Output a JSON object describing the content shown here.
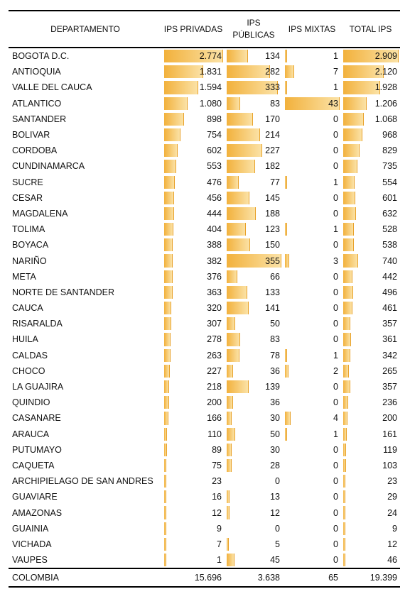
{
  "chart_data": {
    "type": "table",
    "columns": [
      "DEPARTAMENTO",
      "IPS PRIVADAS",
      "IPS PÚBLICAS",
      "IPS MIXTAS",
      "TOTAL IPS"
    ],
    "rows": [
      {
        "name": "BOGOTA D.C.",
        "privadas": "2.774",
        "publicas": "134",
        "mixtas": "1",
        "total": "2.909"
      },
      {
        "name": "ANTIOQUIA",
        "privadas": "1.831",
        "publicas": "282",
        "mixtas": "7",
        "total": "2.120"
      },
      {
        "name": "VALLE DEL CAUCA",
        "privadas": "1.594",
        "publicas": "333",
        "mixtas": "1",
        "total": "1.928"
      },
      {
        "name": "ATLANTICO",
        "privadas": "1.080",
        "publicas": "83",
        "mixtas": "43",
        "total": "1.206"
      },
      {
        "name": "SANTANDER",
        "privadas": "898",
        "publicas": "170",
        "mixtas": "0",
        "total": "1.068"
      },
      {
        "name": "BOLIVAR",
        "privadas": "754",
        "publicas": "214",
        "mixtas": "0",
        "total": "968"
      },
      {
        "name": "CORDOBA",
        "privadas": "602",
        "publicas": "227",
        "mixtas": "0",
        "total": "829"
      },
      {
        "name": "CUNDINAMARCA",
        "privadas": "553",
        "publicas": "182",
        "mixtas": "0",
        "total": "735"
      },
      {
        "name": "SUCRE",
        "privadas": "476",
        "publicas": "77",
        "mixtas": "1",
        "total": "554"
      },
      {
        "name": "CESAR",
        "privadas": "456",
        "publicas": "145",
        "mixtas": "0",
        "total": "601"
      },
      {
        "name": "MAGDALENA",
        "privadas": "444",
        "publicas": "188",
        "mixtas": "0",
        "total": "632"
      },
      {
        "name": "TOLIMA",
        "privadas": "404",
        "publicas": "123",
        "mixtas": "1",
        "total": "528"
      },
      {
        "name": "BOYACA",
        "privadas": "388",
        "publicas": "150",
        "mixtas": "0",
        "total": "538"
      },
      {
        "name": "NARIÑO",
        "privadas": "382",
        "publicas": "355",
        "mixtas": "3",
        "total": "740"
      },
      {
        "name": "META",
        "privadas": "376",
        "publicas": "66",
        "mixtas": "0",
        "total": "442"
      },
      {
        "name": "NORTE DE SANTANDER",
        "privadas": "363",
        "publicas": "133",
        "mixtas": "0",
        "total": "496"
      },
      {
        "name": "CAUCA",
        "privadas": "320",
        "publicas": "141",
        "mixtas": "0",
        "total": "461"
      },
      {
        "name": "RISARALDA",
        "privadas": "307",
        "publicas": "50",
        "mixtas": "0",
        "total": "357"
      },
      {
        "name": "HUILA",
        "privadas": "278",
        "publicas": "83",
        "mixtas": "0",
        "total": "361"
      },
      {
        "name": "CALDAS",
        "privadas": "263",
        "publicas": "78",
        "mixtas": "1",
        "total": "342"
      },
      {
        "name": "CHOCO",
        "privadas": "227",
        "publicas": "36",
        "mixtas": "2",
        "total": "265"
      },
      {
        "name": "LA GUAJIRA",
        "privadas": "218",
        "publicas": "139",
        "mixtas": "0",
        "total": "357"
      },
      {
        "name": "QUINDIO",
        "privadas": "200",
        "publicas": "36",
        "mixtas": "0",
        "total": "236"
      },
      {
        "name": "CASANARE",
        "privadas": "166",
        "publicas": "30",
        "mixtas": "4",
        "total": "200"
      },
      {
        "name": "ARAUCA",
        "privadas": "110",
        "publicas": "50",
        "mixtas": "1",
        "total": "161"
      },
      {
        "name": "PUTUMAYO",
        "privadas": "89",
        "publicas": "30",
        "mixtas": "0",
        "total": "119"
      },
      {
        "name": "CAQUETA",
        "privadas": "75",
        "publicas": "28",
        "mixtas": "0",
        "total": "103"
      },
      {
        "name": "ARCHIPIELAGO DE SAN ANDRES",
        "privadas": "23",
        "publicas": "0",
        "mixtas": "0",
        "total": "23"
      },
      {
        "name": "GUAVIARE",
        "privadas": "16",
        "publicas": "13",
        "mixtas": "0",
        "total": "29"
      },
      {
        "name": "AMAZONAS",
        "privadas": "12",
        "publicas": "12",
        "mixtas": "0",
        "total": "24"
      },
      {
        "name": "GUAINIA",
        "privadas": "9",
        "publicas": "0",
        "mixtas": "0",
        "total": "9"
      },
      {
        "name": "VICHADA",
        "privadas": "7",
        "publicas": "5",
        "mixtas": "0",
        "total": "12"
      },
      {
        "name": "VAUPES",
        "privadas": "1",
        "publicas": "45",
        "mixtas": "0",
        "total": "46"
      }
    ],
    "total_row": {
      "name": "COLOMBIA",
      "privadas": "15.696",
      "publicas": "3.638",
      "mixtas": "65",
      "total": "19.399"
    },
    "bar_color": "#f2b13c"
  }
}
